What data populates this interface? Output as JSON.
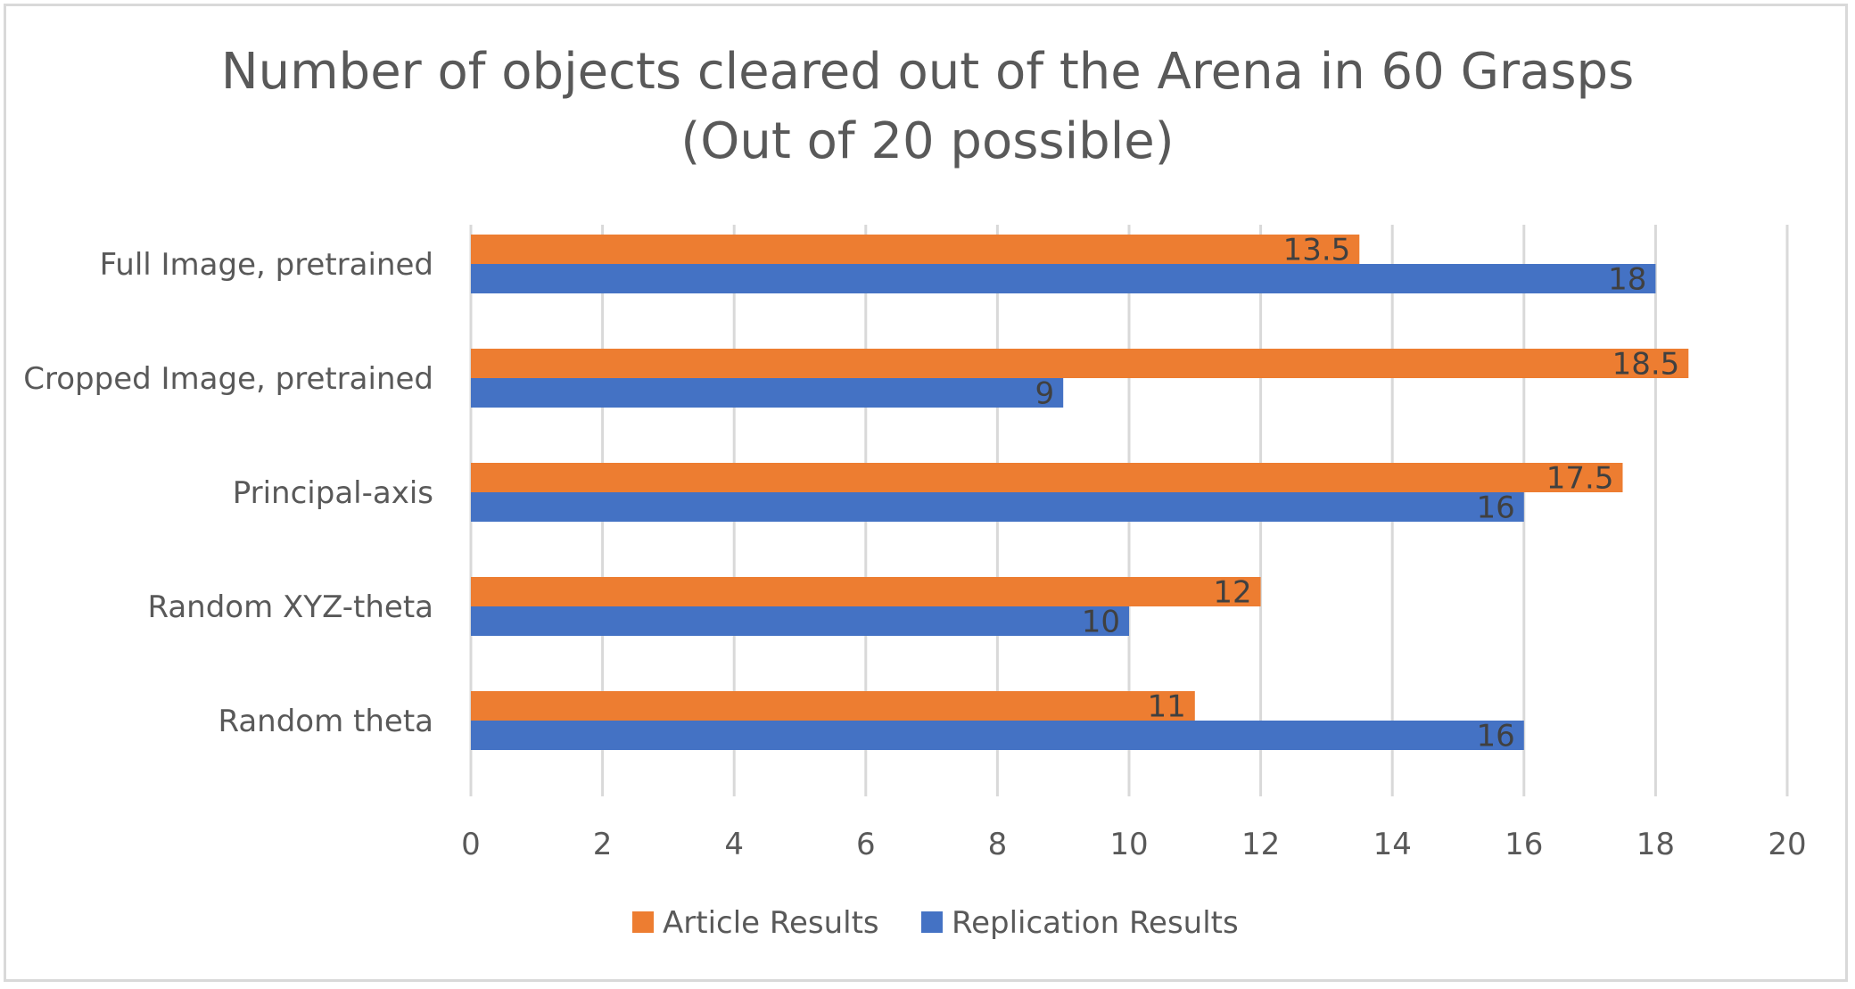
{
  "chart_data": {
    "type": "bar",
    "orientation": "horizontal",
    "title": "Number of objects cleared out of the Arena in 60 Grasps  (Out of 20 possible)",
    "xlabel": "",
    "ylabel": "",
    "categories": [
      "Full Image, pretrained",
      "Cropped Image, pretrained",
      "Principal-axis",
      "Random XYZ-theta",
      "Random theta"
    ],
    "series": [
      {
        "name": "Article Results",
        "color": "#ED7D31",
        "values": [
          13.5,
          18.5,
          17.5,
          12,
          11
        ]
      },
      {
        "name": "Replication Results",
        "color": "#4472C4",
        "values": [
          18,
          9,
          16,
          10,
          16
        ]
      }
    ],
    "xlim": [
      0,
      20
    ],
    "xticks": [
      0,
      2,
      4,
      6,
      8,
      10,
      12,
      14,
      16,
      18,
      20
    ],
    "grid": true,
    "legend": "bottom",
    "data_labels": true
  }
}
